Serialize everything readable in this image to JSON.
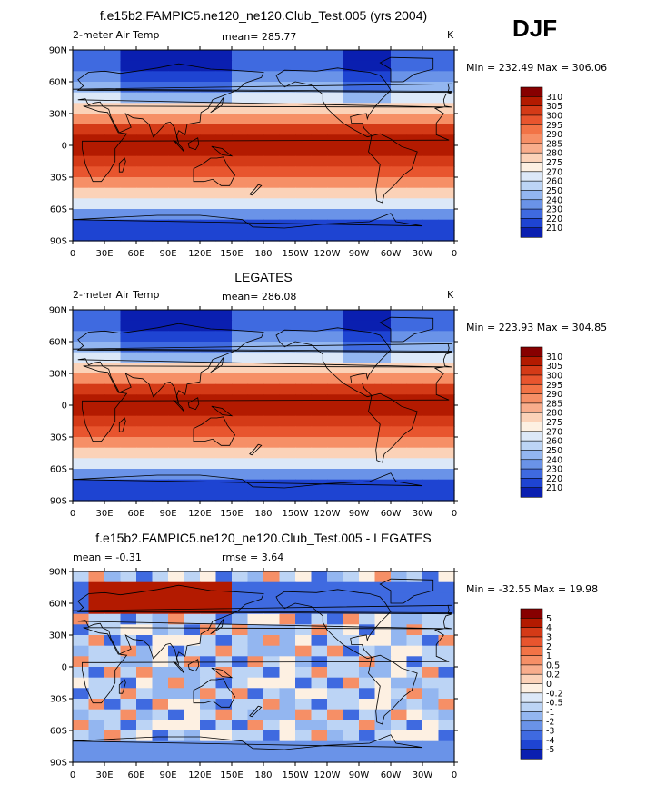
{
  "season": "DJF",
  "panels": [
    {
      "title": "f.e15b2.FAMPIC5.ne120_ne120.Club_Test.005 (yrs 2004)",
      "left_label": "2-meter Air Temp",
      "center_label": "mean= 285.77",
      "right_label": "K",
      "minmax": "Min = 232.49  Max = 306.06",
      "colorbar_labels": [
        "310",
        "305",
        "300",
        "295",
        "290",
        "285",
        "280",
        "275",
        "270",
        "260",
        "250",
        "240",
        "230",
        "220",
        "210"
      ],
      "colorbar_colors": [
        "#870000",
        "#b31a00",
        "#d43a17",
        "#e8552e",
        "#f27346",
        "#f68f66",
        "#f8ad8c",
        "#fbd2b8",
        "#fdf0e2",
        "#dce8f8",
        "#bcd4f5",
        "#93b6f0",
        "#6a93e8",
        "#3f6ae0",
        "#1e44d2",
        "#0a1fb0"
      ],
      "map_scheme": "temp",
      "lat_ticks": [
        "90N",
        "60N",
        "30N",
        "0",
        "30S",
        "60S",
        "90S"
      ],
      "lon_ticks": [
        "0",
        "30E",
        "60E",
        "90E",
        "120E",
        "150E",
        "180",
        "150W",
        "120W",
        "90W",
        "60W",
        "30W",
        "0"
      ]
    },
    {
      "title": "LEGATES",
      "left_label": "2-meter Air Temp",
      "center_label": "mean= 286.08",
      "right_label": "K",
      "minmax": "Min = 223.93  Max = 304.85",
      "colorbar_labels": [
        "310",
        "305",
        "300",
        "295",
        "290",
        "285",
        "280",
        "275",
        "270",
        "260",
        "250",
        "240",
        "230",
        "220",
        "210"
      ],
      "colorbar_colors": [
        "#870000",
        "#b31a00",
        "#d43a17",
        "#e8552e",
        "#f27346",
        "#f68f66",
        "#f8ad8c",
        "#fbd2b8",
        "#fdf0e2",
        "#dce8f8",
        "#bcd4f5",
        "#93b6f0",
        "#6a93e8",
        "#3f6ae0",
        "#1e44d2",
        "#0a1fb0"
      ],
      "map_scheme": "temp",
      "lat_ticks": [
        "90N",
        "60N",
        "30N",
        "0",
        "30S",
        "60S",
        "90S"
      ],
      "lon_ticks": [
        "0",
        "30E",
        "60E",
        "90E",
        "120E",
        "150E",
        "180",
        "150W",
        "120W",
        "90W",
        "60W",
        "30W",
        "0"
      ]
    },
    {
      "title": "f.e15b2.FAMPIC5.ne120_ne120.Club_Test.005 - LEGATES",
      "left_label": "mean =   -0.31",
      "center_label": "rmse =    3.64",
      "right_label": "",
      "minmax": "Min = -32.55  Max =  19.98",
      "colorbar_labels": [
        "5",
        "4",
        "3",
        "2",
        "1",
        "0.5",
        "0.2",
        "0",
        "-0.2",
        "-0.5",
        "-1",
        "-2",
        "-3",
        "-4",
        "-5"
      ],
      "colorbar_colors": [
        "#870000",
        "#b31a00",
        "#d43a17",
        "#e8552e",
        "#f27346",
        "#f68f66",
        "#f8ad8c",
        "#fbd2b8",
        "#fdf0e2",
        "#dce8f8",
        "#bcd4f5",
        "#93b6f0",
        "#6a93e8",
        "#3f6ae0",
        "#1e44d2",
        "#0a1fb0"
      ],
      "map_scheme": "diff",
      "lat_ticks": [
        "90N",
        "60N",
        "30N",
        "0",
        "30S",
        "60S",
        "90S"
      ],
      "lon_ticks": [
        "0",
        "30E",
        "60E",
        "90E",
        "120E",
        "150E",
        "180",
        "150W",
        "120W",
        "90W",
        "60W",
        "30W",
        "0"
      ]
    }
  ]
}
